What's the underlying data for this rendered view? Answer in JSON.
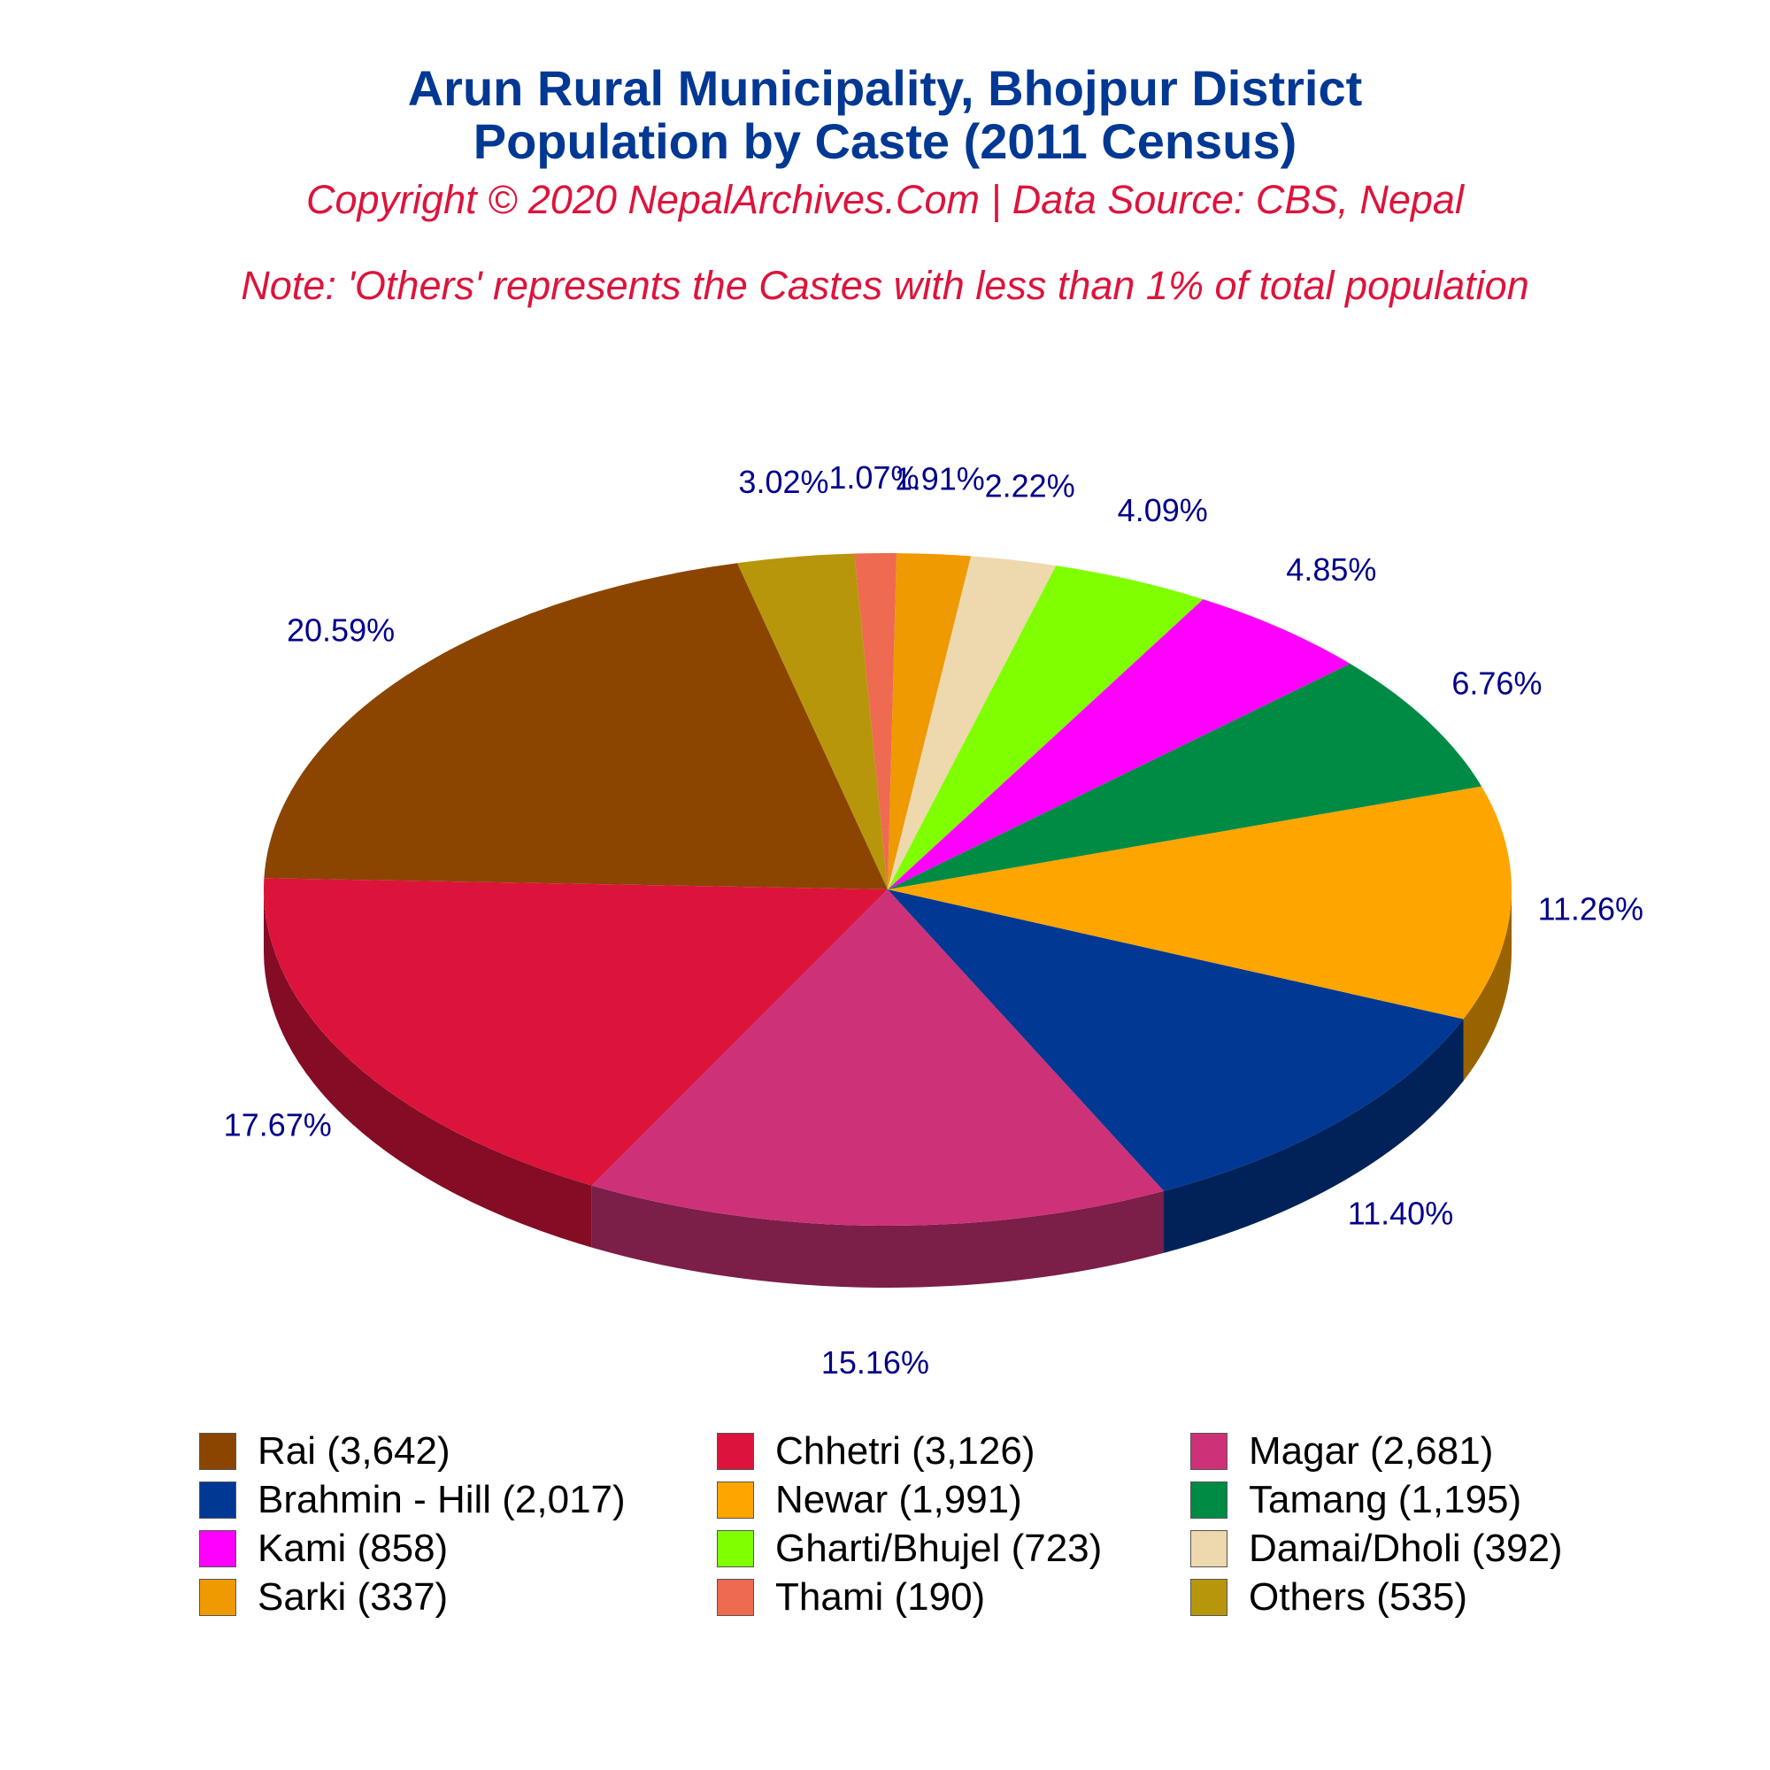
{
  "header": {
    "title_line1": "Arun Rural Municipality, Bhojpur District",
    "title_line2": "Population by Caste (2011 Census)",
    "copyright": "Copyright © 2020 NepalArchives.Com | Data Source: CBS, Nepal",
    "note": "Note: 'Others' represents the Castes with less than 1% of total population"
  },
  "chart_data": {
    "type": "pie",
    "style": "3d",
    "categories": [
      "Rai",
      "Chhetri",
      "Magar",
      "Brahmin - Hill",
      "Newar",
      "Tamang",
      "Kami",
      "Gharti/Bhujel",
      "Damai/Dholi",
      "Sarki",
      "Thami",
      "Others"
    ],
    "values": [
      3642,
      3126,
      2681,
      2017,
      1991,
      1195,
      858,
      723,
      392,
      337,
      190,
      535
    ],
    "percent_labels": [
      "20.59%",
      "17.67%",
      "15.16%",
      "11.40%",
      "11.26%",
      "6.76%",
      "4.85%",
      "4.09%",
      "2.22%",
      "1.91%",
      "1.07%",
      "3.02%"
    ],
    "legend_labels": [
      "Rai (3,642)",
      "Chhetri (3,126)",
      "Magar (2,681)",
      "Brahmin - Hill (2,017)",
      "Newar (1,991)",
      "Tamang (1,195)",
      "Kami (858)",
      "Gharti/Bhujel (723)",
      "Damai/Dholi (392)",
      "Sarki (337)",
      "Thami (190)",
      "Others (535)"
    ],
    "colors": [
      "#8B4500",
      "#DC143C",
      "#CD3278",
      "#003893",
      "#FFA500",
      "#008B45",
      "#FF00FF",
      "#7FFF00",
      "#EED8AE",
      "#EE9A00",
      "#EE6A50",
      "#B8960C"
    ],
    "legend_position": "bottom"
  }
}
